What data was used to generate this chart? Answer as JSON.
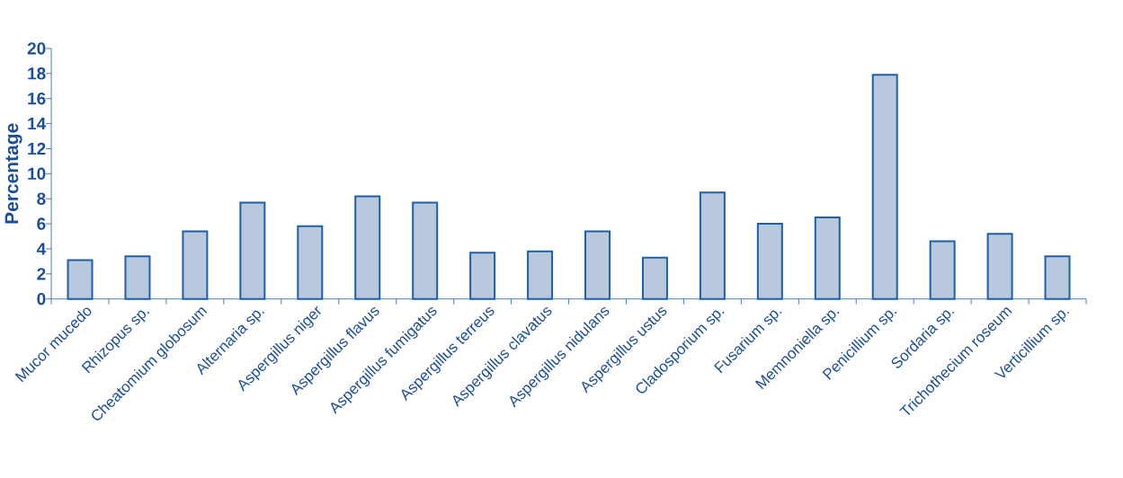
{
  "chart_data": {
    "type": "bar",
    "ylabel": "Percentage",
    "categories": [
      "Mucor mucedo",
      "Rhizopus sp.",
      "Cheatomium globosum",
      "Alternaria sp.",
      "Aspergillus niger",
      "Aspergillus flavus",
      "Aspergillus fumigatus",
      "Aspergillus terreus",
      "Aspergillus clavatus",
      "Aspergillus nidulans",
      "Aspergillus ustus",
      "Cladosporium sp.",
      "Fusarium sp.",
      "Memnoniella sp.",
      "Penicillium sp.",
      "Sordaria sp.",
      "Trichothecium roseum",
      "Verticillium sp."
    ],
    "values": [
      3.1,
      3.4,
      5.4,
      7.7,
      5.8,
      8.2,
      7.7,
      3.7,
      3.8,
      5.4,
      3.3,
      8.5,
      6.0,
      6.5,
      17.9,
      4.6,
      5.2,
      3.4
    ],
    "color": "#b9c9dd",
    "ylim": [
      0,
      20
    ],
    "yticks": [
      0,
      2,
      4,
      6,
      8,
      10,
      12,
      14,
      16,
      18,
      20
    ]
  }
}
